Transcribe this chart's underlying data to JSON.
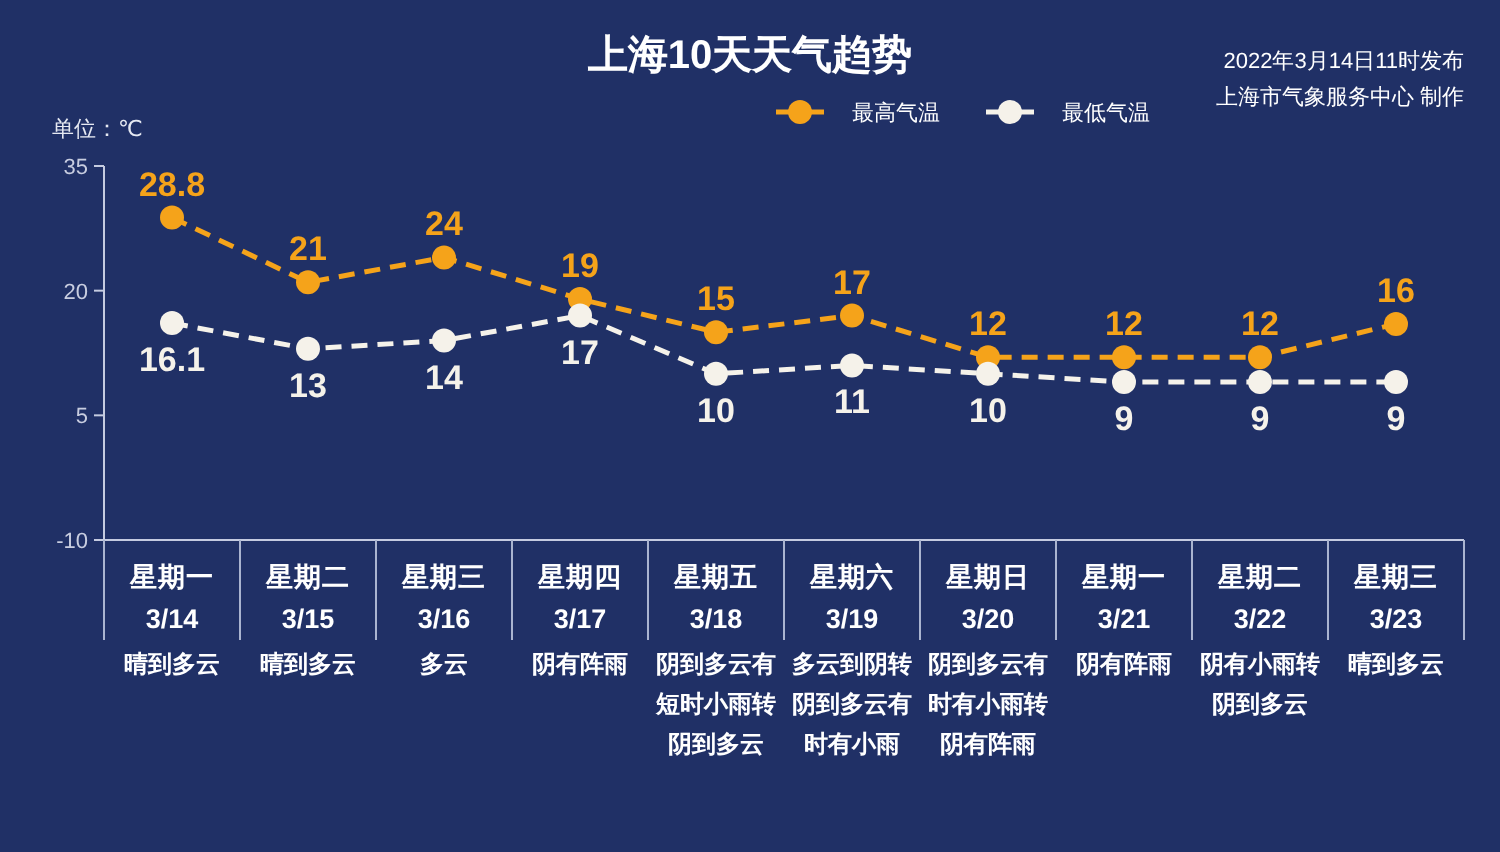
{
  "chart_data": {
    "type": "line",
    "title": "上海10天天气趋势",
    "ylabel": "单位：℃",
    "categories": [
      "星期一\n3/14",
      "星期二\n3/15",
      "星期三\n3/16",
      "星期四\n3/17",
      "星期五\n3/18",
      "星期六\n3/19",
      "星期日\n3/20",
      "星期一\n3/21",
      "星期二\n3/22",
      "星期三\n3/23"
    ],
    "series": [
      {
        "name": "最高气温",
        "color": "#f5a31a",
        "values": [
          28.8,
          21,
          24,
          19,
          15,
          17,
          12,
          12,
          12,
          16
        ]
      },
      {
        "name": "最低气温",
        "color": "#f5f2ea",
        "values": [
          16.1,
          13,
          14,
          17,
          10,
          11,
          10,
          9,
          9,
          9
        ]
      }
    ],
    "ylim": [
      -10,
      35
    ],
    "yticks": [
      -10,
      5,
      20,
      35
    ],
    "grid": false,
    "legend": "top",
    "marker": "circle",
    "line_style": "dashed",
    "data_labels": true,
    "annotations": [
      "2022年3月14日11时发布",
      "上海市气象服务中心 制作",
      "晴到多云",
      "晴到多云",
      "多云",
      "阴有阵雨",
      "阴到多云有短时小雨转阴到多云",
      "多云到阴转阴到多云有时有小雨",
      "阴到多云有时有小雨转阴有阵雨",
      "阴有阵雨",
      "阴有小雨转阴到多云",
      "晴到多云"
    ]
  }
}
